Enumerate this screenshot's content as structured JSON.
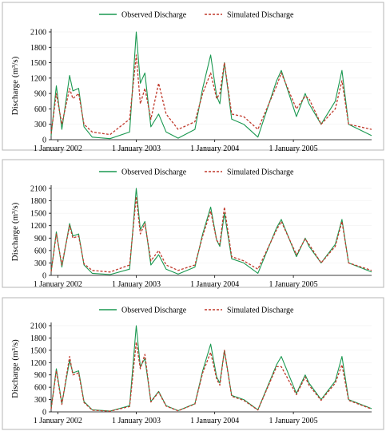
{
  "chart_data": [
    {
      "type": "line",
      "panel": 1,
      "ylabel": "Discharge (m³/s)",
      "ylim": [
        0,
        2100
      ],
      "yticks": [
        0,
        300,
        600,
        900,
        1200,
        1500,
        1800,
        2100
      ],
      "xlim": [
        "2001-12-01",
        "2005-12-31"
      ],
      "xticks": [
        {
          "date": "2002-01-01",
          "label": "1 January 2002"
        },
        {
          "date": "2003-01-01",
          "label": "1 January 2003"
        },
        {
          "date": "2004-01-01",
          "label": "1 January 2004"
        },
        {
          "date": "2005-01-01",
          "label": "1 January 2005"
        }
      ],
      "legend_position": "top-center",
      "series": [
        {
          "name": "Observed Discharge",
          "color": "#1a9850",
          "style": "solid",
          "points": [
            [
              "2001-12-01",
              80
            ],
            [
              "2001-12-25",
              1050
            ],
            [
              "2002-01-20",
              200
            ],
            [
              "2002-02-25",
              1250
            ],
            [
              "2002-03-12",
              950
            ],
            [
              "2002-04-08",
              1000
            ],
            [
              "2002-05-03",
              250
            ],
            [
              "2002-06-10",
              50
            ],
            [
              "2002-09-01",
              20
            ],
            [
              "2002-12-01",
              150
            ],
            [
              "2003-01-01",
              2100
            ],
            [
              "2003-01-20",
              1100
            ],
            [
              "2003-02-10",
              1300
            ],
            [
              "2003-03-10",
              250
            ],
            [
              "2003-04-15",
              500
            ],
            [
              "2003-05-20",
              150
            ],
            [
              "2003-07-15",
              30
            ],
            [
              "2003-10-01",
              200
            ],
            [
              "2003-11-06",
              1000
            ],
            [
              "2003-12-13",
              1650
            ],
            [
              "2004-01-10",
              850
            ],
            [
              "2004-01-25",
              700
            ],
            [
              "2004-02-15",
              1500
            ],
            [
              "2004-03-20",
              400
            ],
            [
              "2004-05-15",
              300
            ],
            [
              "2004-07-20",
              50
            ],
            [
              "2004-10-15",
              1150
            ],
            [
              "2004-11-06",
              1350
            ],
            [
              "2005-01-15",
              450
            ],
            [
              "2005-02-25",
              900
            ],
            [
              "2005-03-15",
              700
            ],
            [
              "2005-05-10",
              300
            ],
            [
              "2005-07-15",
              750
            ],
            [
              "2005-08-15",
              1350
            ],
            [
              "2005-09-15",
              300
            ],
            [
              "2005-12-31",
              80
            ]
          ]
        },
        {
          "name": "Simulated Discharge",
          "color": "#c0392b",
          "style": "dashed",
          "points": [
            [
              "2001-12-01",
              120
            ],
            [
              "2001-12-25",
              900
            ],
            [
              "2002-01-20",
              300
            ],
            [
              "2002-02-25",
              1000
            ],
            [
              "2002-03-12",
              800
            ],
            [
              "2002-04-08",
              900
            ],
            [
              "2002-05-03",
              300
            ],
            [
              "2002-06-10",
              150
            ],
            [
              "2002-09-01",
              100
            ],
            [
              "2002-12-01",
              400
            ],
            [
              "2003-01-01",
              1650
            ],
            [
              "2003-01-20",
              700
            ],
            [
              "2003-02-10",
              1000
            ],
            [
              "2003-03-10",
              400
            ],
            [
              "2003-04-15",
              1100
            ],
            [
              "2003-05-20",
              500
            ],
            [
              "2003-07-15",
              200
            ],
            [
              "2003-10-01",
              350
            ],
            [
              "2003-11-06",
              900
            ],
            [
              "2003-12-13",
              1300
            ],
            [
              "2004-01-10",
              800
            ],
            [
              "2004-01-25",
              900
            ],
            [
              "2004-02-15",
              1500
            ],
            [
              "2004-03-20",
              500
            ],
            [
              "2004-05-15",
              450
            ],
            [
              "2004-07-20",
              200
            ],
            [
              "2004-10-15",
              1050
            ],
            [
              "2004-11-06",
              1300
            ],
            [
              "2005-01-15",
              600
            ],
            [
              "2005-02-25",
              850
            ],
            [
              "2005-03-15",
              800
            ],
            [
              "2005-05-10",
              300
            ],
            [
              "2005-07-15",
              600
            ],
            [
              "2005-08-15",
              1150
            ],
            [
              "2005-09-15",
              300
            ],
            [
              "2005-12-31",
              200
            ]
          ]
        }
      ]
    },
    {
      "type": "line",
      "panel": 2,
      "ylabel": "Discharge (m³/s)",
      "ylim": [
        0,
        2100
      ],
      "yticks": [
        0,
        300,
        600,
        900,
        1200,
        1500,
        1800,
        2100
      ],
      "xlim": [
        "2001-12-01",
        "2005-12-31"
      ],
      "xticks": [
        {
          "date": "2002-01-01",
          "label": "1 January 2002"
        },
        {
          "date": "2003-01-01",
          "label": "1 January 2003"
        },
        {
          "date": "2004-01-01",
          "label": "1 January 2004"
        },
        {
          "date": "2005-01-01",
          "label": "1 January 2005"
        }
      ],
      "legend_position": "top-center",
      "series": [
        {
          "name": "Observed Discharge",
          "color": "#1a9850",
          "style": "solid",
          "points": [
            [
              "2001-12-01",
              80
            ],
            [
              "2001-12-25",
              1050
            ],
            [
              "2002-01-20",
              200
            ],
            [
              "2002-02-25",
              1250
            ],
            [
              "2002-03-12",
              950
            ],
            [
              "2002-04-08",
              1000
            ],
            [
              "2002-05-03",
              250
            ],
            [
              "2002-06-10",
              50
            ],
            [
              "2002-09-01",
              20
            ],
            [
              "2002-12-01",
              150
            ],
            [
              "2003-01-01",
              2100
            ],
            [
              "2003-01-20",
              1100
            ],
            [
              "2003-02-10",
              1300
            ],
            [
              "2003-03-10",
              250
            ],
            [
              "2003-04-15",
              500
            ],
            [
              "2003-05-20",
              150
            ],
            [
              "2003-07-15",
              30
            ],
            [
              "2003-10-01",
              200
            ],
            [
              "2003-11-06",
              1000
            ],
            [
              "2003-12-13",
              1650
            ],
            [
              "2004-01-10",
              850
            ],
            [
              "2004-01-25",
              700
            ],
            [
              "2004-02-15",
              1500
            ],
            [
              "2004-03-20",
              400
            ],
            [
              "2004-05-15",
              300
            ],
            [
              "2004-07-20",
              50
            ],
            [
              "2004-10-15",
              1150
            ],
            [
              "2004-11-06",
              1350
            ],
            [
              "2005-01-15",
              450
            ],
            [
              "2005-02-25",
              900
            ],
            [
              "2005-03-15",
              700
            ],
            [
              "2005-05-10",
              300
            ],
            [
              "2005-07-15",
              750
            ],
            [
              "2005-08-15",
              1350
            ],
            [
              "2005-09-15",
              300
            ],
            [
              "2005-12-31",
              80
            ]
          ]
        },
        {
          "name": "Simulated Discharge",
          "color": "#c0392b",
          "style": "dashed",
          "points": [
            [
              "2001-12-01",
              90
            ],
            [
              "2001-12-25",
              1000
            ],
            [
              "2002-01-20",
              250
            ],
            [
              "2002-02-25",
              1200
            ],
            [
              "2002-03-12",
              900
            ],
            [
              "2002-04-08",
              950
            ],
            [
              "2002-05-03",
              280
            ],
            [
              "2002-06-10",
              120
            ],
            [
              "2002-09-01",
              80
            ],
            [
              "2002-12-01",
              250
            ],
            [
              "2003-01-01",
              1900
            ],
            [
              "2003-01-20",
              1000
            ],
            [
              "2003-02-10",
              1250
            ],
            [
              "2003-03-10",
              350
            ],
            [
              "2003-04-15",
              600
            ],
            [
              "2003-05-20",
              250
            ],
            [
              "2003-07-15",
              120
            ],
            [
              "2003-10-01",
              250
            ],
            [
              "2003-11-06",
              950
            ],
            [
              "2003-12-13",
              1550
            ],
            [
              "2004-01-10",
              850
            ],
            [
              "2004-01-25",
              750
            ],
            [
              "2004-02-15",
              1650
            ],
            [
              "2004-03-20",
              450
            ],
            [
              "2004-05-15",
              350
            ],
            [
              "2004-07-20",
              150
            ],
            [
              "2004-10-15",
              1100
            ],
            [
              "2004-11-06",
              1300
            ],
            [
              "2005-01-15",
              500
            ],
            [
              "2005-02-25",
              880
            ],
            [
              "2005-03-15",
              750
            ],
            [
              "2005-05-10",
              300
            ],
            [
              "2005-07-15",
              700
            ],
            [
              "2005-08-15",
              1300
            ],
            [
              "2005-09-15",
              300
            ],
            [
              "2005-12-31",
              120
            ]
          ]
        }
      ]
    },
    {
      "type": "line",
      "panel": 3,
      "ylabel": "Discharge (m³/s)",
      "ylim": [
        0,
        2100
      ],
      "yticks": [
        0,
        300,
        600,
        900,
        1200,
        1500,
        1800,
        2100
      ],
      "xlim": [
        "2001-12-01",
        "2005-12-31"
      ],
      "xticks": [
        {
          "date": "2002-01-01",
          "label": "1 January 2002"
        },
        {
          "date": "2003-01-01",
          "label": "1 January 2003"
        },
        {
          "date": "2004-01-01",
          "label": "1 January 2004"
        },
        {
          "date": "2005-01-01",
          "label": "1 January 2005"
        }
      ],
      "legend_position": "top-center",
      "series": [
        {
          "name": "Observed Discharge",
          "color": "#1a9850",
          "style": "solid",
          "points": [
            [
              "2001-12-01",
              80
            ],
            [
              "2001-12-25",
              1050
            ],
            [
              "2002-01-20",
              200
            ],
            [
              "2002-02-25",
              1250
            ],
            [
              "2002-03-12",
              950
            ],
            [
              "2002-04-08",
              1000
            ],
            [
              "2002-05-03",
              250
            ],
            [
              "2002-06-10",
              50
            ],
            [
              "2002-09-01",
              20
            ],
            [
              "2002-12-01",
              150
            ],
            [
              "2003-01-01",
              2100
            ],
            [
              "2003-01-20",
              1100
            ],
            [
              "2003-02-10",
              1300
            ],
            [
              "2003-03-10",
              250
            ],
            [
              "2003-04-15",
              500
            ],
            [
              "2003-05-20",
              150
            ],
            [
              "2003-07-15",
              30
            ],
            [
              "2003-10-01",
              200
            ],
            [
              "2003-11-06",
              1000
            ],
            [
              "2003-12-13",
              1650
            ],
            [
              "2004-01-10",
              850
            ],
            [
              "2004-01-25",
              700
            ],
            [
              "2004-02-15",
              1500
            ],
            [
              "2004-03-20",
              400
            ],
            [
              "2004-05-15",
              300
            ],
            [
              "2004-07-20",
              50
            ],
            [
              "2004-10-15",
              1150
            ],
            [
              "2004-11-06",
              1350
            ],
            [
              "2005-01-15",
              450
            ],
            [
              "2005-02-25",
              900
            ],
            [
              "2005-03-15",
              700
            ],
            [
              "2005-05-10",
              300
            ],
            [
              "2005-07-15",
              750
            ],
            [
              "2005-08-15",
              1350
            ],
            [
              "2005-09-15",
              300
            ],
            [
              "2005-12-31",
              80
            ]
          ]
        },
        {
          "name": "Simulated Discharge",
          "color": "#c0392b",
          "style": "dashed",
          "points": [
            [
              "2001-12-01",
              70
            ],
            [
              "2001-12-25",
              1000
            ],
            [
              "2002-01-20",
              180
            ],
            [
              "2002-02-25",
              1350
            ],
            [
              "2002-03-12",
              900
            ],
            [
              "2002-04-08",
              950
            ],
            [
              "2002-05-03",
              230
            ],
            [
              "2002-06-10",
              40
            ],
            [
              "2002-09-01",
              15
            ],
            [
              "2002-12-01",
              130
            ],
            [
              "2003-01-01",
              1700
            ],
            [
              "2003-01-20",
              1050
            ],
            [
              "2003-02-10",
              1400
            ],
            [
              "2003-03-10",
              240
            ],
            [
              "2003-04-15",
              480
            ],
            [
              "2003-05-20",
              140
            ],
            [
              "2003-07-15",
              25
            ],
            [
              "2003-10-01",
              190
            ],
            [
              "2003-11-06",
              950
            ],
            [
              "2003-12-13",
              1450
            ],
            [
              "2004-01-10",
              800
            ],
            [
              "2004-01-25",
              650
            ],
            [
              "2004-02-15",
              1500
            ],
            [
              "2004-03-20",
              380
            ],
            [
              "2004-05-15",
              280
            ],
            [
              "2004-07-20",
              45
            ],
            [
              "2004-10-15",
              1100
            ],
            [
              "2004-11-06",
              1100
            ],
            [
              "2005-01-15",
              420
            ],
            [
              "2005-02-25",
              850
            ],
            [
              "2005-03-15",
              650
            ],
            [
              "2005-05-10",
              280
            ],
            [
              "2005-07-15",
              700
            ],
            [
              "2005-08-15",
              1150
            ],
            [
              "2005-09-15",
              280
            ],
            [
              "2005-12-31",
              70
            ]
          ]
        }
      ]
    }
  ]
}
